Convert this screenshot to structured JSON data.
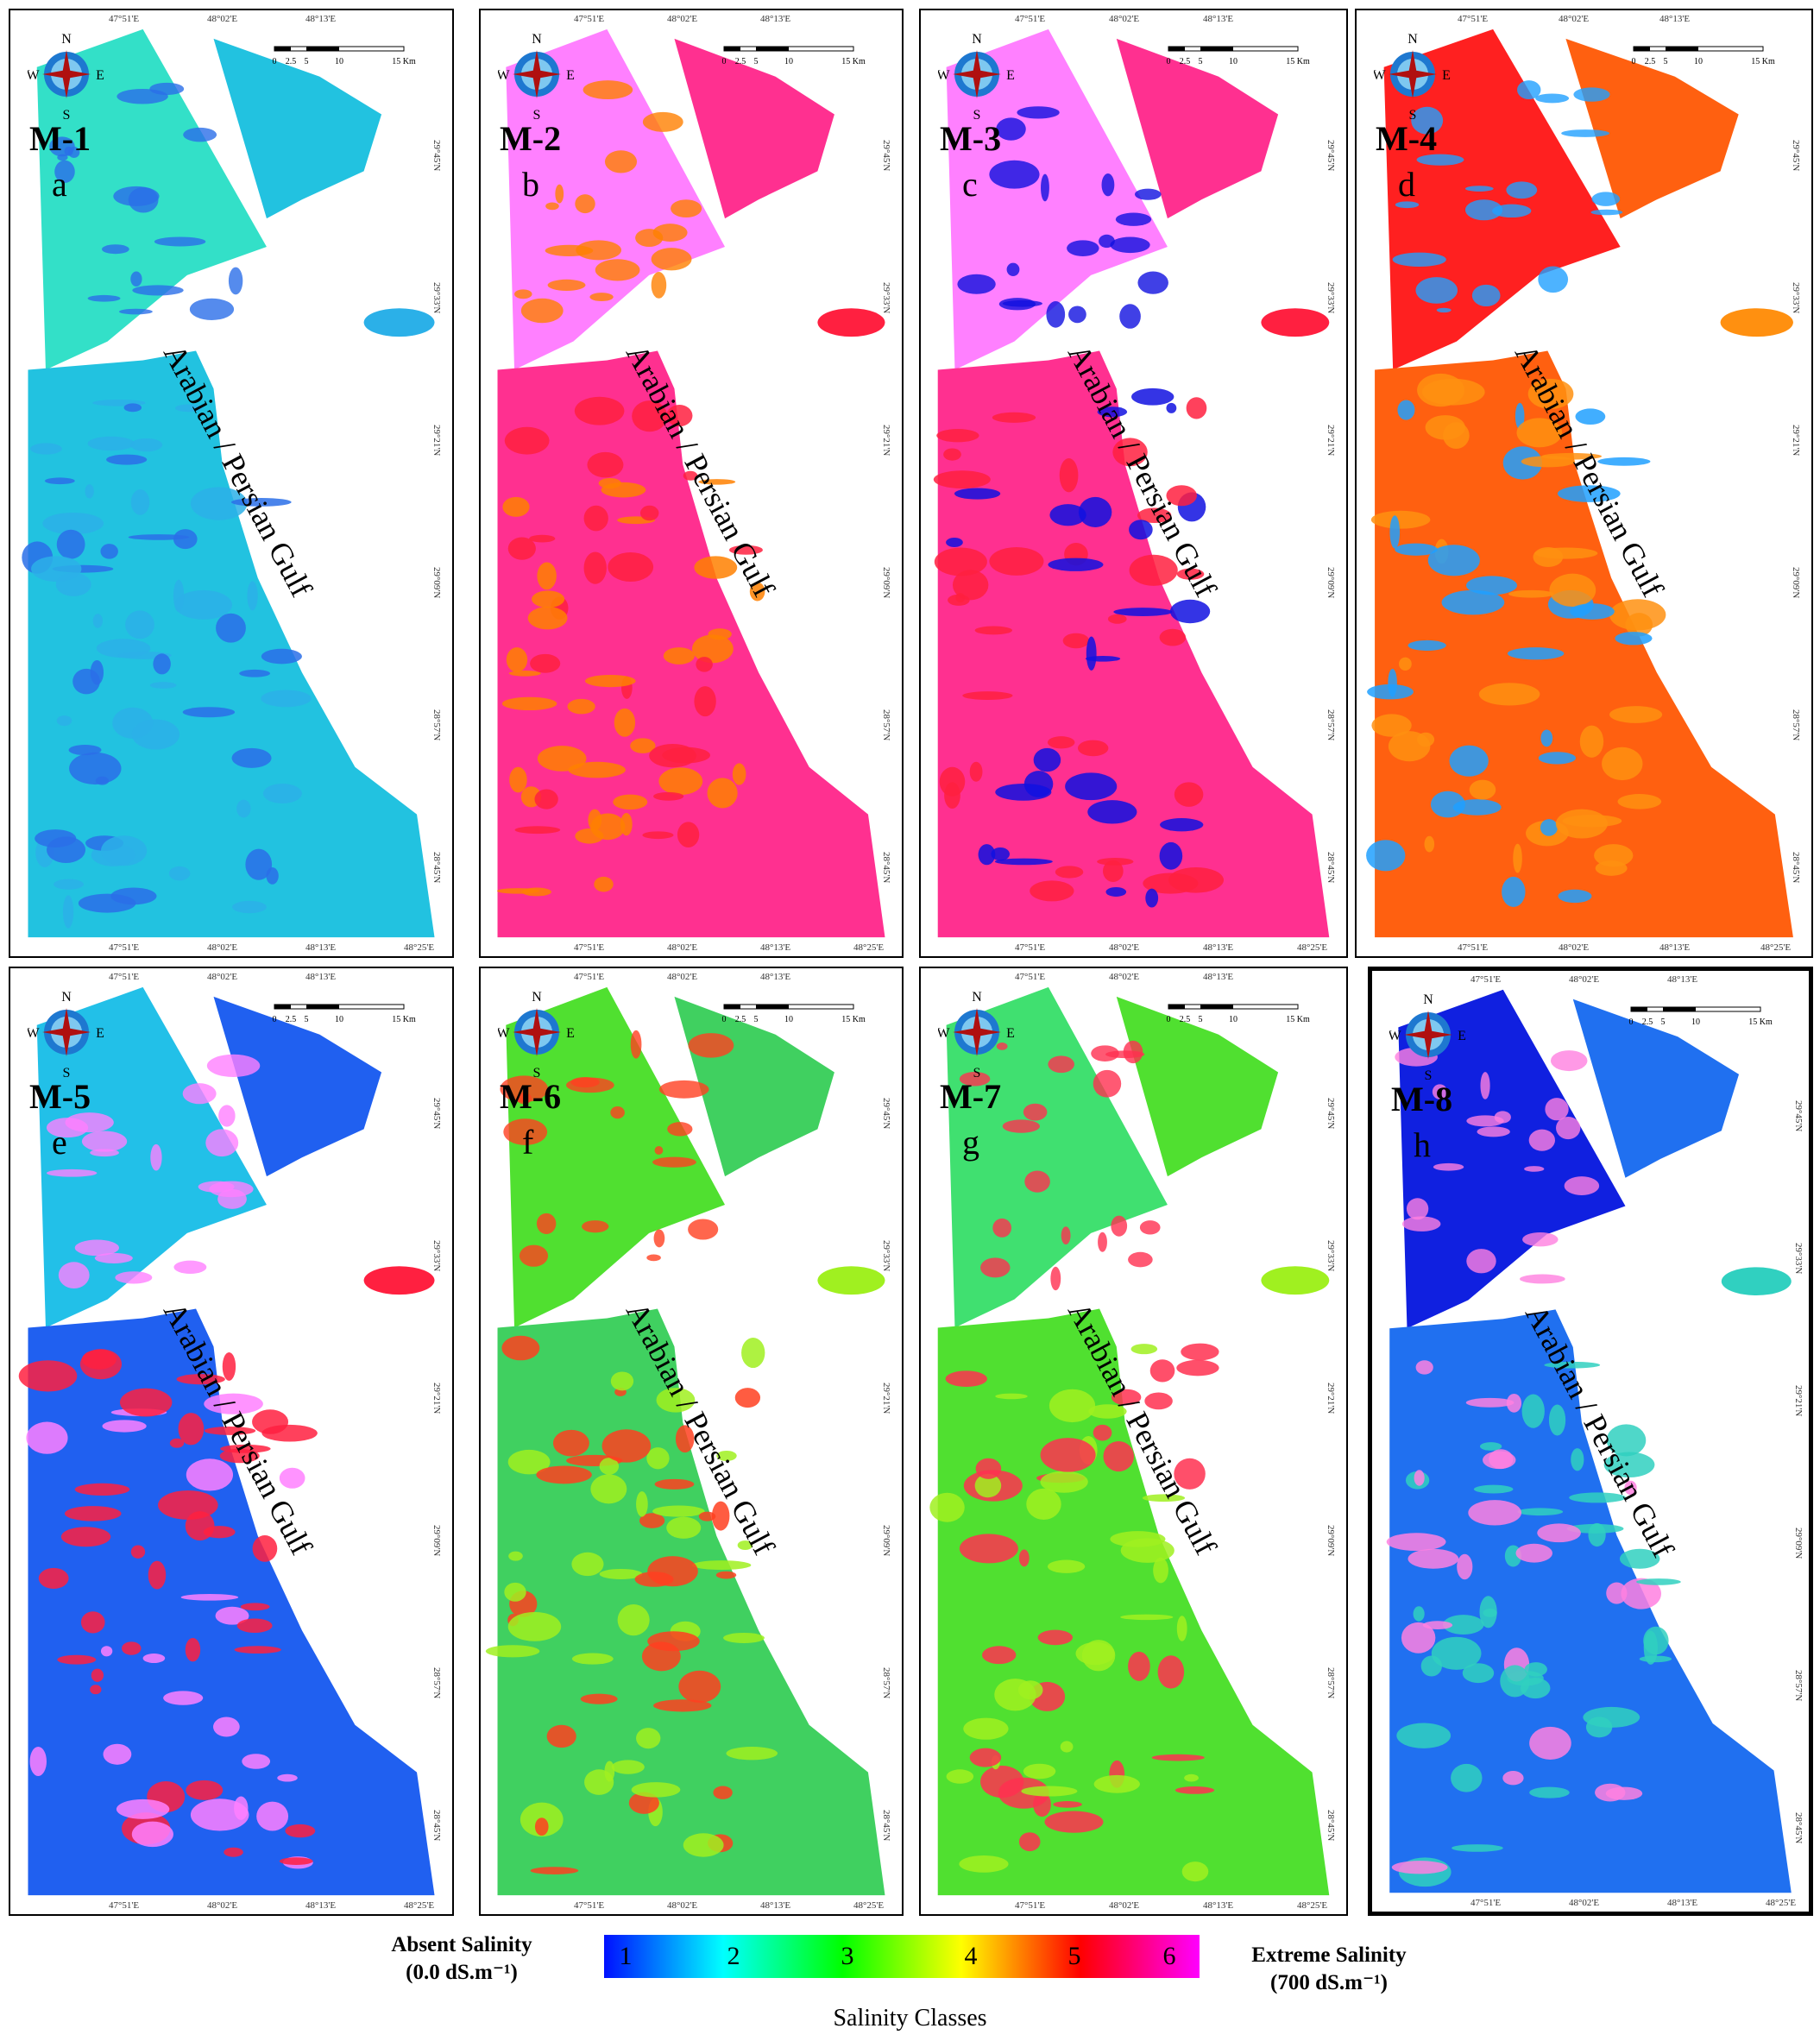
{
  "panels": [
    {
      "id": "M-1",
      "letter": "a",
      "palette": [
        "#33e0c8",
        "#22c2e0",
        "#2bb0e8",
        "#2a6ee8"
      ],
      "thick": false
    },
    {
      "id": "M-2",
      "letter": "b",
      "palette": [
        "#ff80ff",
        "#ff3090",
        "#ff2040",
        "#ff8000"
      ],
      "thick": false
    },
    {
      "id": "M-3",
      "letter": "c",
      "palette": [
        "#ff80ff",
        "#ff3090",
        "#ff2040",
        "#1010e0"
      ],
      "thick": false
    },
    {
      "id": "M-4",
      "letter": "d",
      "palette": [
        "#ff2020",
        "#ff6010",
        "#ff9010",
        "#20a0ff"
      ],
      "thick": false
    },
    {
      "id": "M-5",
      "letter": "e",
      "palette": [
        "#22c0e8",
        "#2060f0",
        "#ff2040",
        "#ff80ff"
      ],
      "thick": false
    },
    {
      "id": "M-6",
      "letter": "f",
      "palette": [
        "#50e030",
        "#40d060",
        "#a0f020",
        "#ff4020"
      ],
      "thick": false
    },
    {
      "id": "M-7",
      "letter": "g",
      "palette": [
        "#40e070",
        "#50e030",
        "#a0f020",
        "#ff3050"
      ],
      "thick": false
    },
    {
      "id": "M-8",
      "letter": "h",
      "palette": [
        "#1020e0",
        "#2070f0",
        "#30d0c0",
        "#ff80e0"
      ],
      "thick": true
    }
  ],
  "gulf_label": "Arabian / Persian Gulf",
  "compass": {
    "n": "N",
    "s": "S",
    "e": "E",
    "w": "W"
  },
  "scale_bar": {
    "ticks": [
      "0",
      "2.5",
      "5",
      "10",
      "15 Km"
    ]
  },
  "coords": {
    "top": [
      "47°51'E",
      "48°02'E",
      "48°13'E"
    ],
    "bottom": [
      "47°51'E",
      "48°02'E",
      "48°13'E",
      "48°25'E"
    ],
    "left": [
      "29°45'N",
      "29°33'N",
      "29°21'N",
      "29°09'N",
      "28°57'N",
      "28°45'N"
    ]
  },
  "legend": {
    "left_line1": "Absent Salinity",
    "left_line2": "(0.0 dS.m⁻¹)",
    "right_line1": "Extreme Salinity",
    "right_line2": "(700 dS.m⁻¹)",
    "classes": [
      "1",
      "2",
      "3",
      "4",
      "5",
      "6"
    ],
    "gradient": [
      "#0010ff",
      "#00ffff",
      "#00ff00",
      "#ffff00",
      "#ff0000",
      "#ff00ff"
    ],
    "title": "Salinity  Classes"
  }
}
